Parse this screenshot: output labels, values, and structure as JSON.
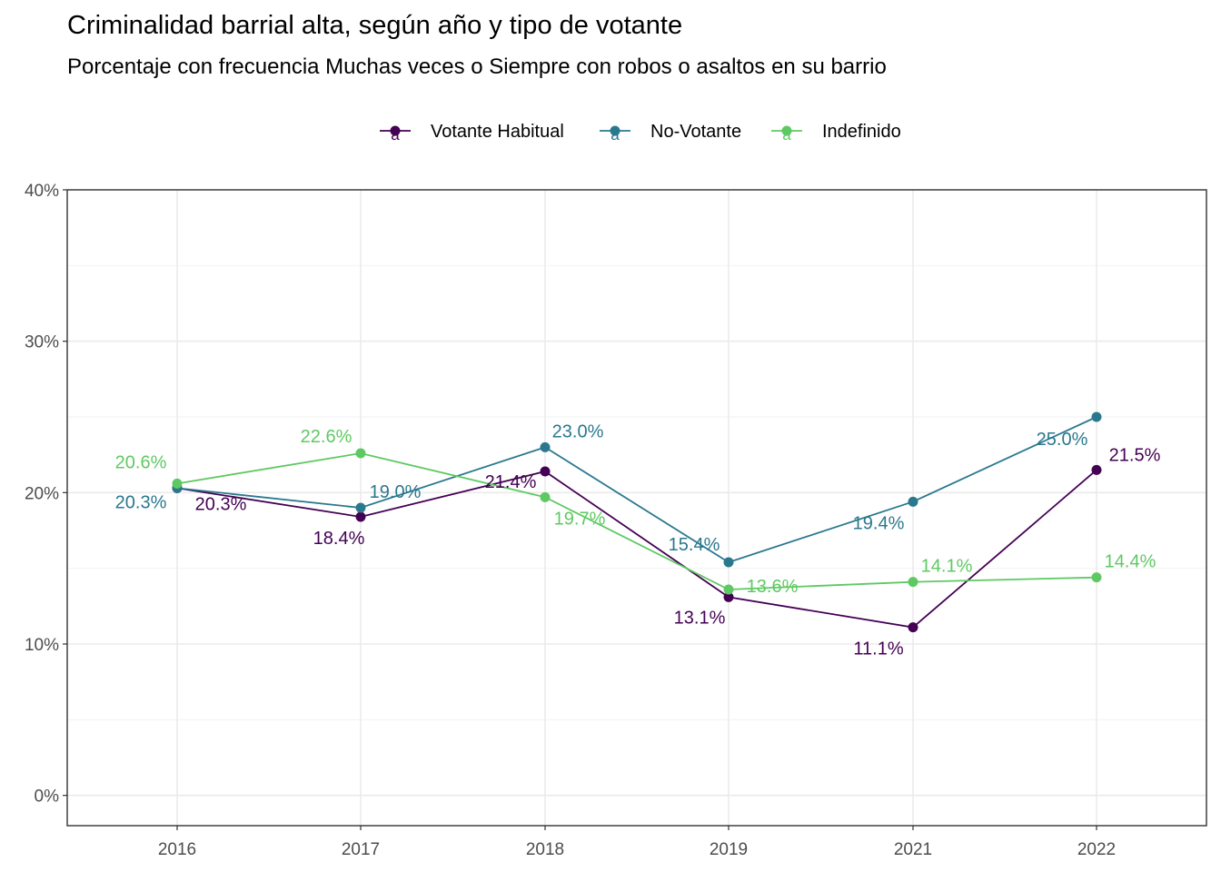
{
  "chart_data": {
    "type": "line",
    "title": "Criminalidad barrial alta, según año y tipo de votante",
    "subtitle": "Porcentaje con frecuencia Muchas veces o Siempre con robos o asaltos en su barrio",
    "xlabel": "",
    "ylabel": "",
    "categories": [
      "2016",
      "2017",
      "2018",
      "2019",
      "2021",
      "2022"
    ],
    "ylim": [
      -2,
      40
    ],
    "y_ticks": [
      0,
      10,
      20,
      30,
      40
    ],
    "y_tick_labels": [
      "0%",
      "10%",
      "20%",
      "30%",
      "40%"
    ],
    "grid": true,
    "legend_position": "top",
    "legend_key_glyph": "a",
    "series": [
      {
        "name": "Votante Habitual",
        "color": "#440154",
        "values": [
          20.3,
          18.4,
          21.4,
          13.1,
          11.1,
          21.5
        ],
        "labels": [
          "20.3%",
          "18.4%",
          "21.4%",
          "13.1%",
          "11.1%",
          "21.5%"
        ]
      },
      {
        "name": "No-Votante",
        "color": "#2A788E",
        "values": [
          20.3,
          19.0,
          23.0,
          15.4,
          19.4,
          25.0
        ],
        "labels": [
          "20.3%",
          "19.0%",
          "23.0%",
          "15.4%",
          "19.4%",
          "25.0%"
        ]
      },
      {
        "name": "Indefinido",
        "color": "#5EC962",
        "values": [
          20.6,
          22.6,
          19.7,
          13.6,
          14.1,
          14.4
        ],
        "labels": [
          "20.6%",
          "22.6%",
          "19.7%",
          "13.6%",
          "14.1%",
          "14.4%"
        ]
      }
    ]
  }
}
